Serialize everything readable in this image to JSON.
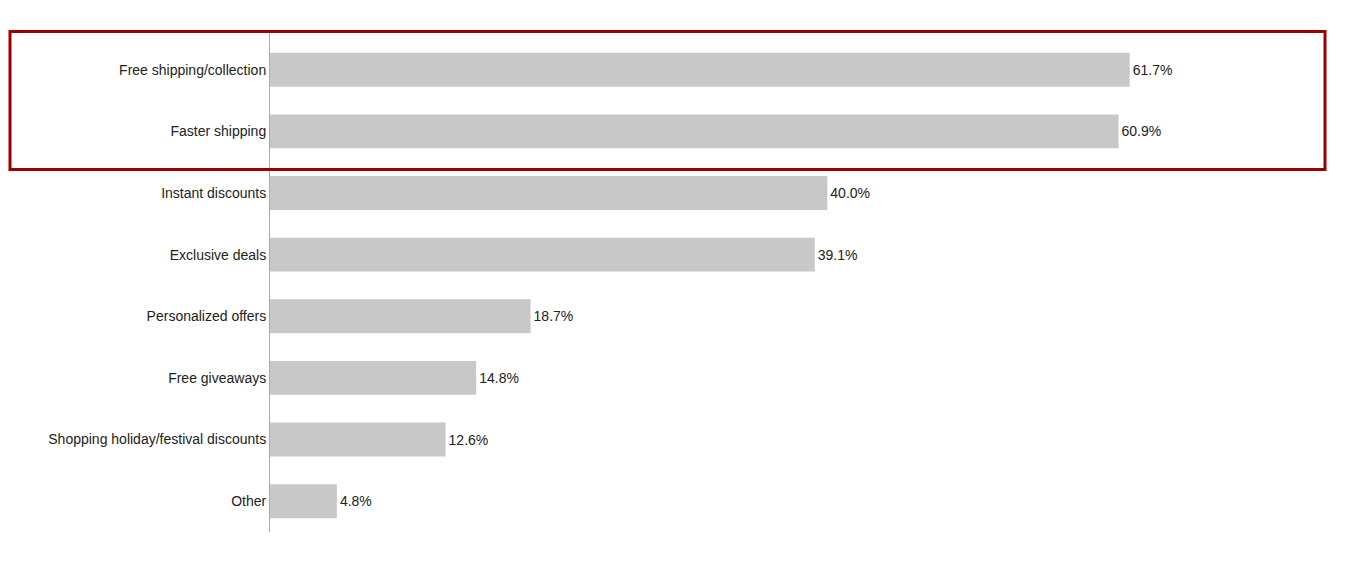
{
  "chart_data": {
    "type": "bar",
    "orientation": "horizontal",
    "categories": [
      "Other",
      "Shopping holiday/festival discounts",
      "Free giveaways",
      "Personalized offers",
      "Exclusive deals",
      "Instant discounts",
      "Faster shipping",
      "Free shipping/collection"
    ],
    "values": [
      4.8,
      12.6,
      14.8,
      18.7,
      39.1,
      40.0,
      60.9,
      61.7
    ],
    "value_labels": [
      "4.8%",
      "12.6%",
      "14.8%",
      "18.7%",
      "39.1%",
      "40.0%",
      "60.9%",
      "61.7%"
    ],
    "data_labels": true,
    "color": "#c8c8c8",
    "xlim": [
      0,
      75
    ],
    "tick_labels": "y",
    "grid": false,
    "highlight": {
      "categories": [
        "Faster shipping",
        "Free shipping/collection"
      ],
      "color": "#9b0000"
    }
  }
}
